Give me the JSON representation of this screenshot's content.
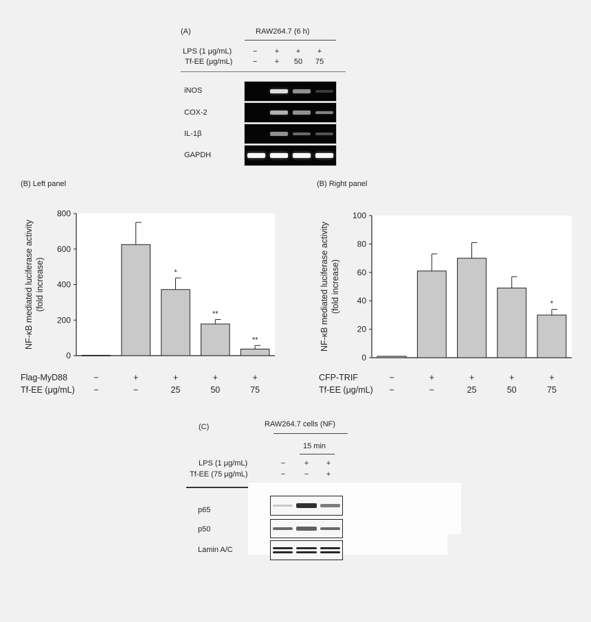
{
  "panel_a": {
    "label": "(A)",
    "header": "RAW264.7 (6 h)",
    "rows": [
      {
        "label": "LPS (1 μg/mL)",
        "values": [
          "−",
          "+",
          "+",
          "+"
        ]
      },
      {
        "label": "Tf-EE (μg/mL)",
        "values": [
          "−",
          "+",
          "50",
          "75"
        ]
      }
    ],
    "blots": [
      {
        "label": "iNOS",
        "intensities": [
          0.0,
          0.75,
          0.45,
          0.08
        ]
      },
      {
        "label": "COX-2",
        "intensities": [
          0.0,
          0.55,
          0.45,
          0.4
        ]
      },
      {
        "label": "IL-1β",
        "intensities": [
          0.0,
          0.45,
          0.3,
          0.2
        ]
      },
      {
        "label": "GAPDH",
        "intensities": [
          0.95,
          0.95,
          0.95,
          0.95
        ]
      }
    ]
  },
  "panel_b_left": {
    "label": "(B) Left panel"
  },
  "panel_b_right": {
    "label": "(B) Right panel"
  },
  "panel_c": {
    "label": "(C)",
    "header": "RAW264.7 cells (NF)",
    "subheader": "15 min",
    "rows": [
      {
        "label": "LPS (1 μg/mL)",
        "values": [
          "−",
          "+",
          "+"
        ]
      },
      {
        "label": "Tf-EE (75 μg/mL)",
        "values": [
          "−",
          "−",
          "+"
        ]
      }
    ],
    "blots": [
      {
        "label": "p65",
        "intensities": [
          0.05,
          0.85,
          0.45
        ]
      },
      {
        "label": "p50",
        "intensities": [
          0.55,
          0.6,
          0.55
        ]
      },
      {
        "label": "Lamin  A/C",
        "intensities": [
          0.9,
          0.9,
          0.9
        ]
      }
    ]
  },
  "chart_data": [
    {
      "type": "bar",
      "title": "(B) Left panel",
      "ylabel_line1": "NF-κB mediated luciferase activity",
      "ylabel_line2": "(fold increase)",
      "ylim": [
        0,
        800
      ],
      "yticks": [
        0,
        200,
        400,
        600,
        800
      ],
      "grid": false,
      "bar_color": "#c9c9c9",
      "row_labels": [
        "Flag-MyD88",
        "Tf-EE (μg/mL)"
      ],
      "conditions": [
        {
          "row1": "−",
          "row2": "−"
        },
        {
          "row1": "+",
          "row2": "−"
        },
        {
          "row1": "+",
          "row2": "25"
        },
        {
          "row1": "+",
          "row2": "50"
        },
        {
          "row1": "+",
          "row2": "75"
        }
      ],
      "values": [
        2,
        625,
        372,
        178,
        37
      ],
      "errors": [
        0,
        125,
        65,
        25,
        20
      ],
      "significance": [
        "",
        "",
        "*",
        "**",
        "**"
      ]
    },
    {
      "type": "bar",
      "title": "(B) Right panel",
      "ylabel_line1": "NF-κB mediated luciferase activity",
      "ylabel_line2": "(fold increase)",
      "ylim": [
        0,
        100
      ],
      "yticks": [
        0,
        20,
        40,
        60,
        80,
        100
      ],
      "grid": false,
      "bar_color": "#c9c9c9",
      "row_labels": [
        "CFP-TRIF",
        "Tf-EE (μg/mL)"
      ],
      "conditions": [
        {
          "row1": "−",
          "row2": "−"
        },
        {
          "row1": "+",
          "row2": "−"
        },
        {
          "row1": "+",
          "row2": "25"
        },
        {
          "row1": "+",
          "row2": "50"
        },
        {
          "row1": "+",
          "row2": "75"
        }
      ],
      "values": [
        1,
        61,
        70,
        49,
        30
      ],
      "errors": [
        0,
        12,
        11,
        8,
        4
      ],
      "significance": [
        "",
        "",
        "",
        "",
        "*"
      ]
    }
  ]
}
